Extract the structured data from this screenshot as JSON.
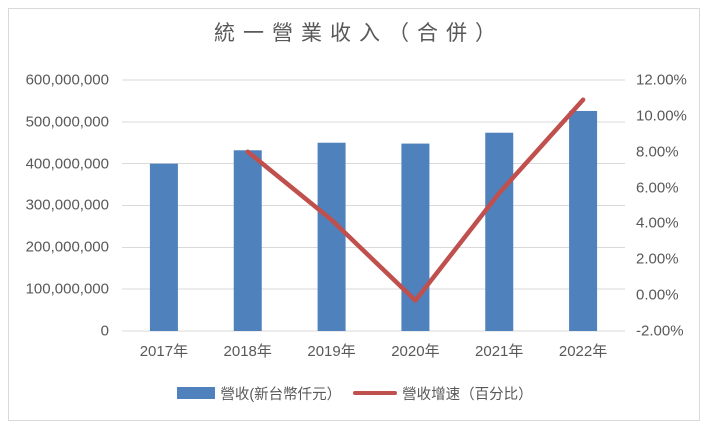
{
  "title": "統一營業收入（合併）",
  "colors": {
    "bar": "#4F81BD",
    "line": "#C0504D",
    "grid": "#d9d9d9",
    "axis_text": "#595959",
    "frame_border": "#d9d9d9",
    "background": "#ffffff"
  },
  "chart_data": {
    "type": "bar",
    "subtype": "combo-bar-line-dual-axis",
    "title": "統一營業收入（合併）",
    "categories": [
      "2017年",
      "2018年",
      "2019年",
      "2020年",
      "2021年",
      "2022年"
    ],
    "series": [
      {
        "name": "營收(新台幣仟元）",
        "type": "bar",
        "axis": "primary",
        "color": "#4F81BD",
        "values": [
          400000000,
          432000000,
          450000000,
          448000000,
          474000000,
          526000000
        ]
      },
      {
        "name": "營收增速（百分比）",
        "type": "line",
        "axis": "secondary",
        "color": "#C0504D",
        "values": [
          null,
          8.0,
          4.2,
          -0.3,
          5.7,
          10.9
        ]
      }
    ],
    "primary_axis": {
      "min": 0,
      "max": 600000000,
      "step": 100000000,
      "tick_labels": [
        "600,000,000",
        "500,000,000",
        "400,000,000",
        "300,000,000",
        "200,000,000",
        "100,000,000",
        "0"
      ]
    },
    "secondary_axis": {
      "min": -2,
      "max": 12,
      "step": 2,
      "tick_labels": [
        "12.00%",
        "10.00%",
        "8.00%",
        "6.00%",
        "4.00%",
        "2.00%",
        "0.00%",
        "-2.00%"
      ]
    },
    "grid": "horizontal-on",
    "legend_position": "bottom"
  },
  "legend": {
    "items": [
      {
        "label": "營收(新台幣仟元）",
        "marker": "bar-swatch",
        "color": "#4F81BD"
      },
      {
        "label": "營收增速（百分比）",
        "marker": "line-swatch",
        "color": "#C0504D"
      }
    ]
  }
}
